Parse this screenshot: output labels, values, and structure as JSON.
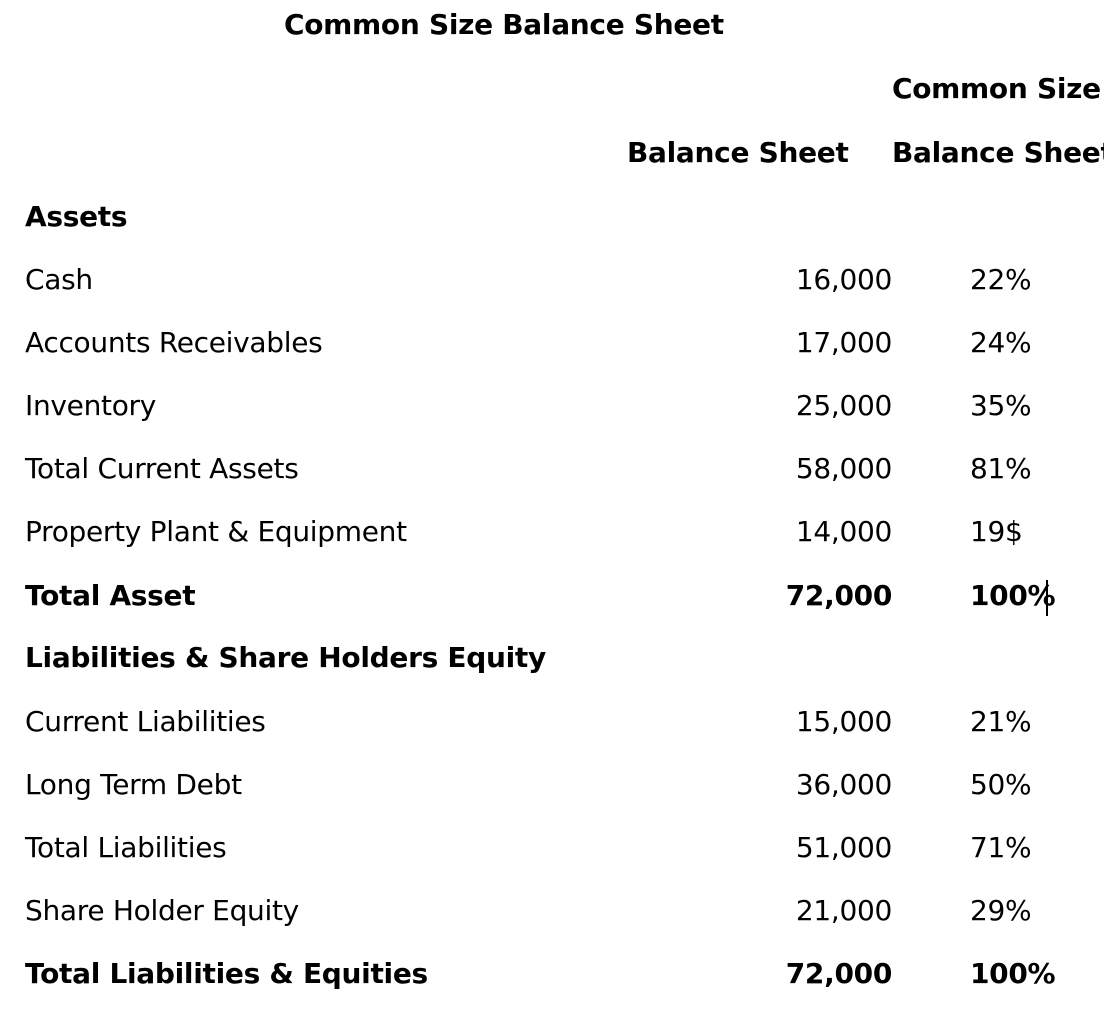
{
  "title": "Common Size Balance Sheet",
  "headers": {
    "common_size_top": "Common Size",
    "balance_sheet": "Balance Sheet",
    "common_size_bottom": "Balance Sheet"
  },
  "rows": [
    {
      "label": "Assets",
      "amount": "",
      "pct": "",
      "bold": true
    },
    {
      "label": "Cash",
      "amount": "16,000",
      "pct": "22%",
      "bold": false
    },
    {
      "label": "Accounts Receivables",
      "amount": "17,000",
      "pct": "24%",
      "bold": false
    },
    {
      "label": "Inventory",
      "amount": "25,000",
      "pct": "35%",
      "bold": false
    },
    {
      "label": "Total Current Assets",
      "amount": "58,000",
      "pct": "81%",
      "bold": false
    },
    {
      "label": "Property Plant & Equipment",
      "amount": "14,000",
      "pct": "19$",
      "bold": false
    },
    {
      "label": "Total Asset",
      "amount": "72,000",
      "pct": "100%",
      "bold": true
    },
    {
      "label": "Liabilities & Share Holders Equity",
      "amount": "",
      "pct": "",
      "bold": true
    },
    {
      "label": "Current Liabilities",
      "amount": "15,000",
      "pct": "21%",
      "bold": false
    },
    {
      "label": "Long Term Debt",
      "amount": "36,000",
      "pct": "50%",
      "bold": false
    },
    {
      "label": "Total Liabilities",
      "amount": "51,000",
      "pct": "71%",
      "bold": false
    },
    {
      "label": "Share Holder Equity",
      "amount": "21,000",
      "pct": "29%",
      "bold": false
    },
    {
      "label": "Total Liabilities & Equities",
      "amount": "72,000",
      "pct": "100%",
      "bold": true
    }
  ]
}
